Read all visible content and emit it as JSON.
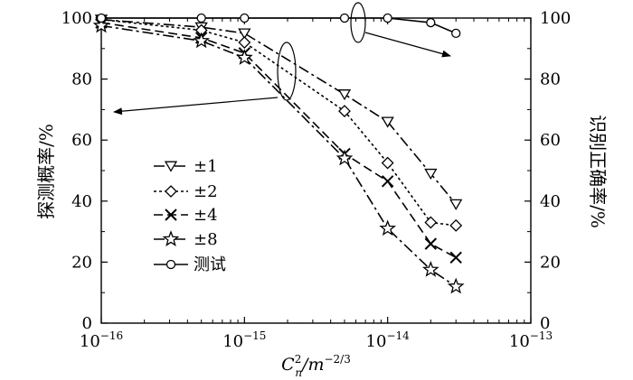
{
  "chart_data": {
    "type": "line",
    "xscale": "log",
    "xlim": [
      1e-16,
      1e-13
    ],
    "ylim_left": [
      0,
      100
    ],
    "ylim_right": [
      0,
      100
    ],
    "xlabel": "C_n^2/m^-2/3",
    "xlabel_parts": {
      "main": "C",
      "sup": "2",
      "sub": "n",
      "unit": "/m",
      "unit_sup": "−2/3"
    },
    "ylabel_left": "探测概率/%",
    "ylabel_right": "识别正确率/%",
    "x_ticks": [
      {
        "value": 1e-16,
        "base": "10",
        "exp": "−16"
      },
      {
        "value": 1e-15,
        "base": "10",
        "exp": "−15"
      },
      {
        "value": 1e-14,
        "base": "10",
        "exp": "−14"
      },
      {
        "value": 1e-13,
        "base": "10",
        "exp": "−13"
      }
    ],
    "y_ticks_left": [
      "0",
      "20",
      "40",
      "60",
      "80",
      "100"
    ],
    "y_ticks_right": [
      "0",
      "20",
      "40",
      "60",
      "80",
      "100"
    ],
    "legend_position": "center-left",
    "grid": false,
    "series": [
      {
        "name": "±1",
        "marker": "triangle-down",
        "dash": "12,4,3,4",
        "axis": "left",
        "x": [
          1e-16,
          5e-16,
          1e-15,
          5e-15,
          1e-14,
          2e-14,
          3e-14
        ],
        "y": [
          99.5,
          97,
          95,
          75,
          66,
          49,
          39
        ]
      },
      {
        "name": "±2",
        "marker": "diamond",
        "dash": "3,3",
        "axis": "left",
        "x": [
          1e-16,
          5e-16,
          1e-15,
          5e-15,
          1e-14,
          2e-14,
          3e-14
        ],
        "y": [
          99.5,
          96,
          92,
          69.5,
          52.5,
          33,
          32
        ]
      },
      {
        "name": "±4",
        "marker": "x",
        "dash": "10,5",
        "axis": "left",
        "x": [
          1e-16,
          5e-16,
          1e-15,
          5e-15,
          1e-14,
          2e-14,
          3e-14
        ],
        "y": [
          98.5,
          93.5,
          88.5,
          55.5,
          46.5,
          26,
          21.5
        ]
      },
      {
        "name": "±8",
        "marker": "star",
        "dash": "12,4,3,4",
        "axis": "left",
        "x": [
          1e-16,
          5e-16,
          1e-15,
          5e-15,
          1e-14,
          2e-14,
          3e-14
        ],
        "y": [
          97.5,
          92.5,
          87,
          54,
          31,
          17.5,
          12
        ]
      },
      {
        "name": "测试",
        "marker": "circle",
        "dash": "none",
        "axis": "right",
        "x": [
          1e-16,
          5e-16,
          1e-15,
          5e-15,
          1e-14,
          2e-14,
          3e-14
        ],
        "y": [
          100,
          100,
          100,
          100,
          100,
          98.5,
          95
        ]
      }
    ]
  }
}
